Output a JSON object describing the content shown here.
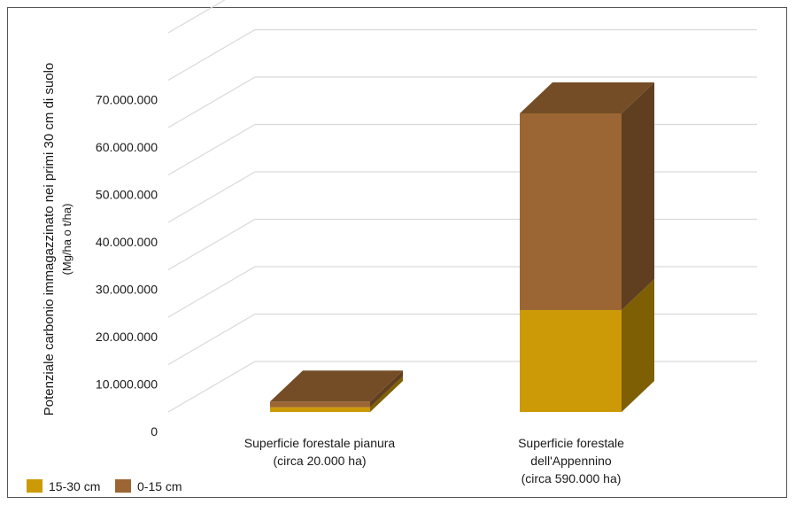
{
  "chart_data": {
    "type": "bar",
    "stacked": true,
    "three_d": true,
    "categories": [
      [
        "Superficie forestale pianura",
        "(circa 20.000 ha)"
      ],
      [
        "Superficie forestale",
        "dell'Appennino",
        "(circa 590.000 ha)"
      ]
    ],
    "series": [
      {
        "name": "15-30 cm",
        "color": "#cc9a06",
        "values": [
          1000000,
          21500000
        ]
      },
      {
        "name": "0-15 cm",
        "color": "#9b6633",
        "values": [
          1200000,
          41500000
        ]
      }
    ],
    "ylabel": "Potenziale carbonio immagazzinato nei primi 30 cm di suolo",
    "ylabel_sub": "(Mg/ha o t/ha)",
    "yticks": [
      "0",
      "10.000.000",
      "20.000.000",
      "30.000.000",
      "40.000.000",
      "50.000.000",
      "60.000.000",
      "70.000.000"
    ],
    "ylim": [
      0,
      80000000
    ],
    "grid": true,
    "legend": "bottom-left"
  }
}
